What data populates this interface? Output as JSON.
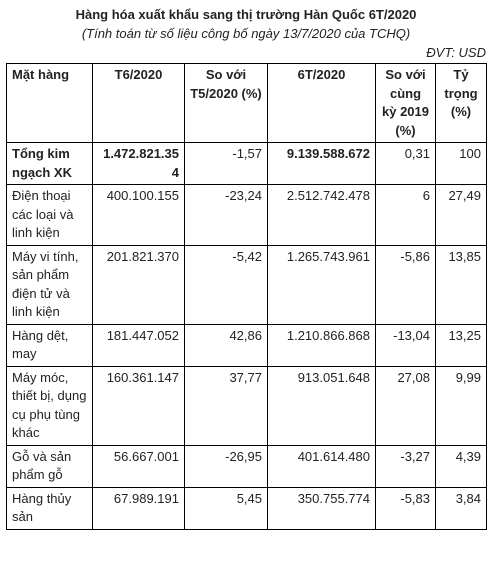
{
  "title": "Hàng hóa xuất khẩu sang thị trường Hàn Quốc 6T/2020",
  "subtitle": "(Tính toán từ số liệu công bố ngày 13/7/2020 của TCHQ)",
  "unit": "ĐVT: USD",
  "table": {
    "headers": [
      "Mặt hàng",
      "T6/2020",
      "So với T5/2020 (%)",
      "6T/2020",
      "So với cùng kỳ 2019 (%)",
      "Tỷ trọng (%)"
    ],
    "total": [
      "Tổng kim ngạch XK",
      "1.472.821.354",
      "-1,57",
      "9.139.588.672",
      "0,31",
      "100"
    ],
    "rows": [
      [
        "Điện thoại các loại và linh kiện",
        "400.100.155",
        "-23,24",
        "2.512.742.478",
        "6",
        "27,49"
      ],
      [
        "Máy vi tính, sản phẩm điện tử và linh kiện",
        "201.821.370",
        "-5,42",
        "1.265.743.961",
        "-5,86",
        "13,85"
      ],
      [
        "Hàng dệt, may",
        "181.447.052",
        "42,86",
        "1.210.866.868",
        "-13,04",
        "13,25"
      ],
      [
        "Máy móc, thiết bị, dụng cụ phụ tùng khác",
        "160.361.147",
        "37,77",
        "913.051.648",
        "27,08",
        "9,99"
      ],
      [
        "Gỗ và sản phẩm gỗ",
        "56.667.001",
        "-26,95",
        "401.614.480",
        "-3,27",
        "4,39"
      ],
      [
        "Hàng thủy sản",
        "67.989.191",
        "5,45",
        "350.755.774",
        "-5,83",
        "3,84"
      ]
    ]
  }
}
